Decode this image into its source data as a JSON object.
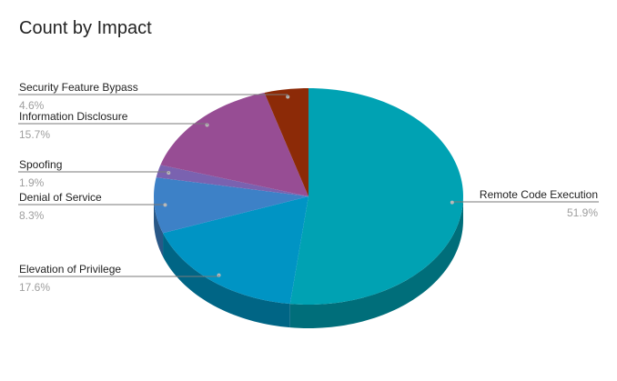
{
  "chart_data": {
    "type": "pie",
    "title": "Count by Impact",
    "slices": [
      {
        "label": "Remote Code Execution",
        "percent": 51.9,
        "percent_label": "51.9%",
        "color": "#00a2b3"
      },
      {
        "label": "Elevation of Privilege",
        "percent": 17.6,
        "percent_label": "17.6%",
        "color": "#0094c4"
      },
      {
        "label": "Denial of Service",
        "percent": 8.3,
        "percent_label": "8.3%",
        "color": "#3d81c7"
      },
      {
        "label": "Spoofing",
        "percent": 1.9,
        "percent_label": "1.9%",
        "color": "#7a62b0"
      },
      {
        "label": "Information Disclosure",
        "percent": 15.7,
        "percent_label": "15.7%",
        "color": "#974d94"
      },
      {
        "label": "Security Feature Bypass",
        "percent": 4.6,
        "percent_label": "4.6%",
        "color": "#8c2a07"
      }
    ],
    "style": "3d",
    "legend": "none"
  }
}
